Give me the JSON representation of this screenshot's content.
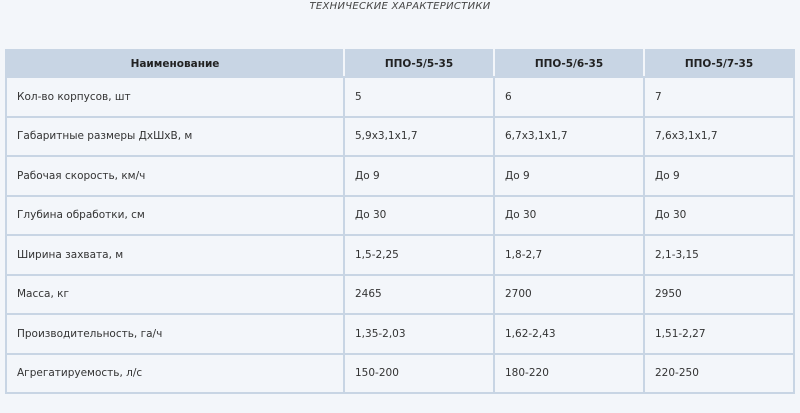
{
  "title": "ТЕХНИЧЕСКИЕ  ХАРАКТЕРИСТИКИ",
  "table": {
    "headers": [
      "Наименование",
      "ППО-5/5-35",
      "ППО-5/6-35",
      "ППО-5/7-35"
    ],
    "rows": [
      [
        "Кол-во корпусов, шт",
        "5",
        "6",
        "7"
      ],
      [
        "Габаритные размеры ДхШхВ, м",
        "5,9х3,1х1,7",
        "6,7х3,1х1,7",
        "7,6х3,1х1,7"
      ],
      [
        "Рабочая скорость, км/ч",
        "До 9",
        "До 9",
        "До 9"
      ],
      [
        "Глубина обработки, см",
        "До 30",
        "До 30",
        "До 30"
      ],
      [
        "Ширина захвата, м",
        "1,5-2,25",
        "1,8-2,7",
        "2,1-3,15"
      ],
      [
        "Масса, кг",
        "2465",
        "2700",
        "2950"
      ],
      [
        "Производительность, га/ч",
        "1,35-2,03",
        "1,62-2,43",
        "1,51-2,27"
      ],
      [
        "Агрегатируемость, л/с",
        "150-200",
        "180-220",
        "220-250"
      ]
    ]
  }
}
